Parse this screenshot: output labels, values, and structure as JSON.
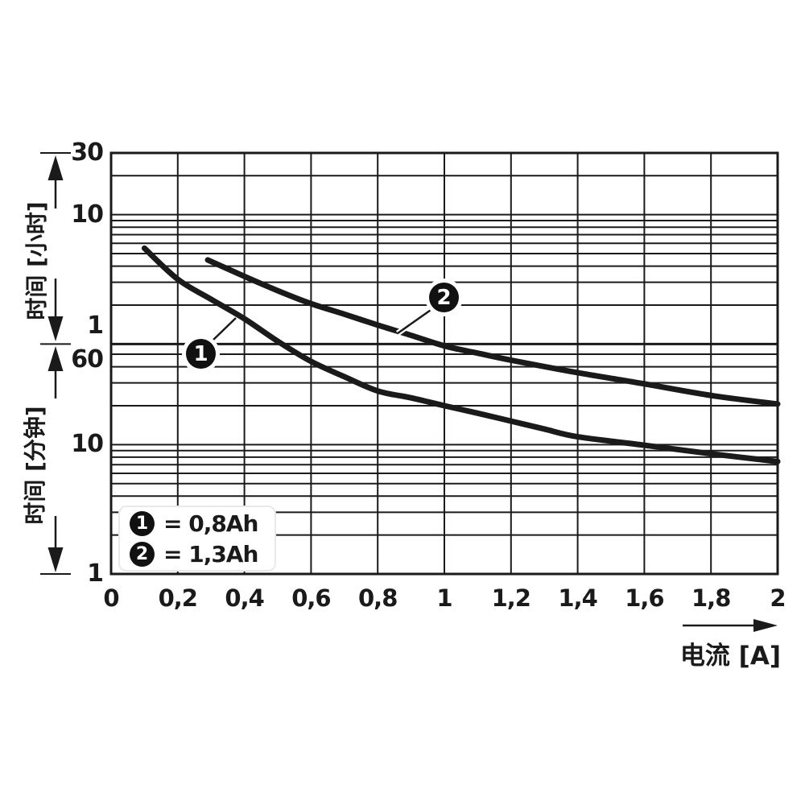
{
  "colors": {
    "ink": "#1a1a1a",
    "background": "#ffffff"
  },
  "legend": {
    "items": [
      {
        "symbol": "1",
        "label": "= 0,8Ah"
      },
      {
        "symbol": "2",
        "label": "= 1,3Ah"
      }
    ]
  },
  "callouts": [
    {
      "symbol": "1"
    },
    {
      "symbol": "2"
    }
  ],
  "chart_data": {
    "type": "line",
    "title": "",
    "grid": true,
    "x_axis": {
      "label": "电流 [A]",
      "min": 0,
      "max": 2,
      "ticks": [
        {
          "label": "0",
          "value": 0
        },
        {
          "label": "0,2",
          "value": 0.2
        },
        {
          "label": "0,4",
          "value": 0.4
        },
        {
          "label": "0,6",
          "value": 0.6
        },
        {
          "label": "0,8",
          "value": 0.8
        },
        {
          "label": "1",
          "value": 1
        },
        {
          "label": "1,2",
          "value": 1.2
        },
        {
          "label": "1,4",
          "value": 1.4
        },
        {
          "label": "1,6",
          "value": 1.6
        },
        {
          "label": "1,8",
          "value": 1.8
        },
        {
          "label": "2",
          "value": 2
        }
      ]
    },
    "y_axis": {
      "scale": "log",
      "unit_upper": "hours",
      "unit_lower": "minutes",
      "label_upper": "时间 [小时]",
      "label_lower": "时间 [分钟]",
      "min_minutes": 1,
      "max_minutes": 1800,
      "boundary_minutes": 60,
      "tick_labels": [
        {
          "text": "30",
          "minutes": 1800,
          "dy": 0
        },
        {
          "text": "10",
          "minutes": 600,
          "dy": 0
        },
        {
          "text": "1",
          "minutes": 60,
          "dy": -22
        },
        {
          "text": "60",
          "minutes": 60,
          "dy": 20
        },
        {
          "text": "10",
          "minutes": 10,
          "dy": 0
        },
        {
          "text": "1",
          "minutes": 1,
          "dy": 0
        }
      ],
      "gridlines_minutes": [
        2,
        3,
        4,
        5,
        6,
        7,
        8,
        9,
        10,
        20,
        30,
        40,
        50,
        60,
        120,
        180,
        240,
        300,
        360,
        420,
        480,
        540,
        600,
        1200
      ]
    },
    "series": [
      {
        "name": "1",
        "capacity": "0,8Ah",
        "x_unit": "A",
        "y_unit": "minutes",
        "points": [
          [
            0.1,
            330
          ],
          [
            0.2,
            190
          ],
          [
            0.3,
            133
          ],
          [
            0.4,
            94
          ],
          [
            0.5,
            63
          ],
          [
            0.6,
            44
          ],
          [
            0.7,
            33.5
          ],
          [
            0.8,
            26
          ],
          [
            0.9,
            23
          ],
          [
            1.0,
            20
          ],
          [
            1.1,
            17.5
          ],
          [
            1.2,
            15.2
          ],
          [
            1.3,
            13.2
          ],
          [
            1.4,
            11.5
          ],
          [
            1.6,
            9.9
          ],
          [
            1.8,
            8.5
          ],
          [
            2.0,
            7.4
          ]
        ]
      },
      {
        "name": "2",
        "capacity": "1,3Ah",
        "x_unit": "A",
        "y_unit": "minutes",
        "points": [
          [
            0.29,
            268
          ],
          [
            0.4,
            200
          ],
          [
            0.5,
            155
          ],
          [
            0.6,
            123
          ],
          [
            0.7,
            102
          ],
          [
            0.8,
            84
          ],
          [
            0.9,
            70
          ],
          [
            1.0,
            58
          ],
          [
            1.1,
            51
          ],
          [
            1.2,
            45
          ],
          [
            1.4,
            36
          ],
          [
            1.6,
            29.5
          ],
          [
            1.8,
            24
          ],
          [
            2.0,
            20.6
          ]
        ]
      }
    ]
  }
}
